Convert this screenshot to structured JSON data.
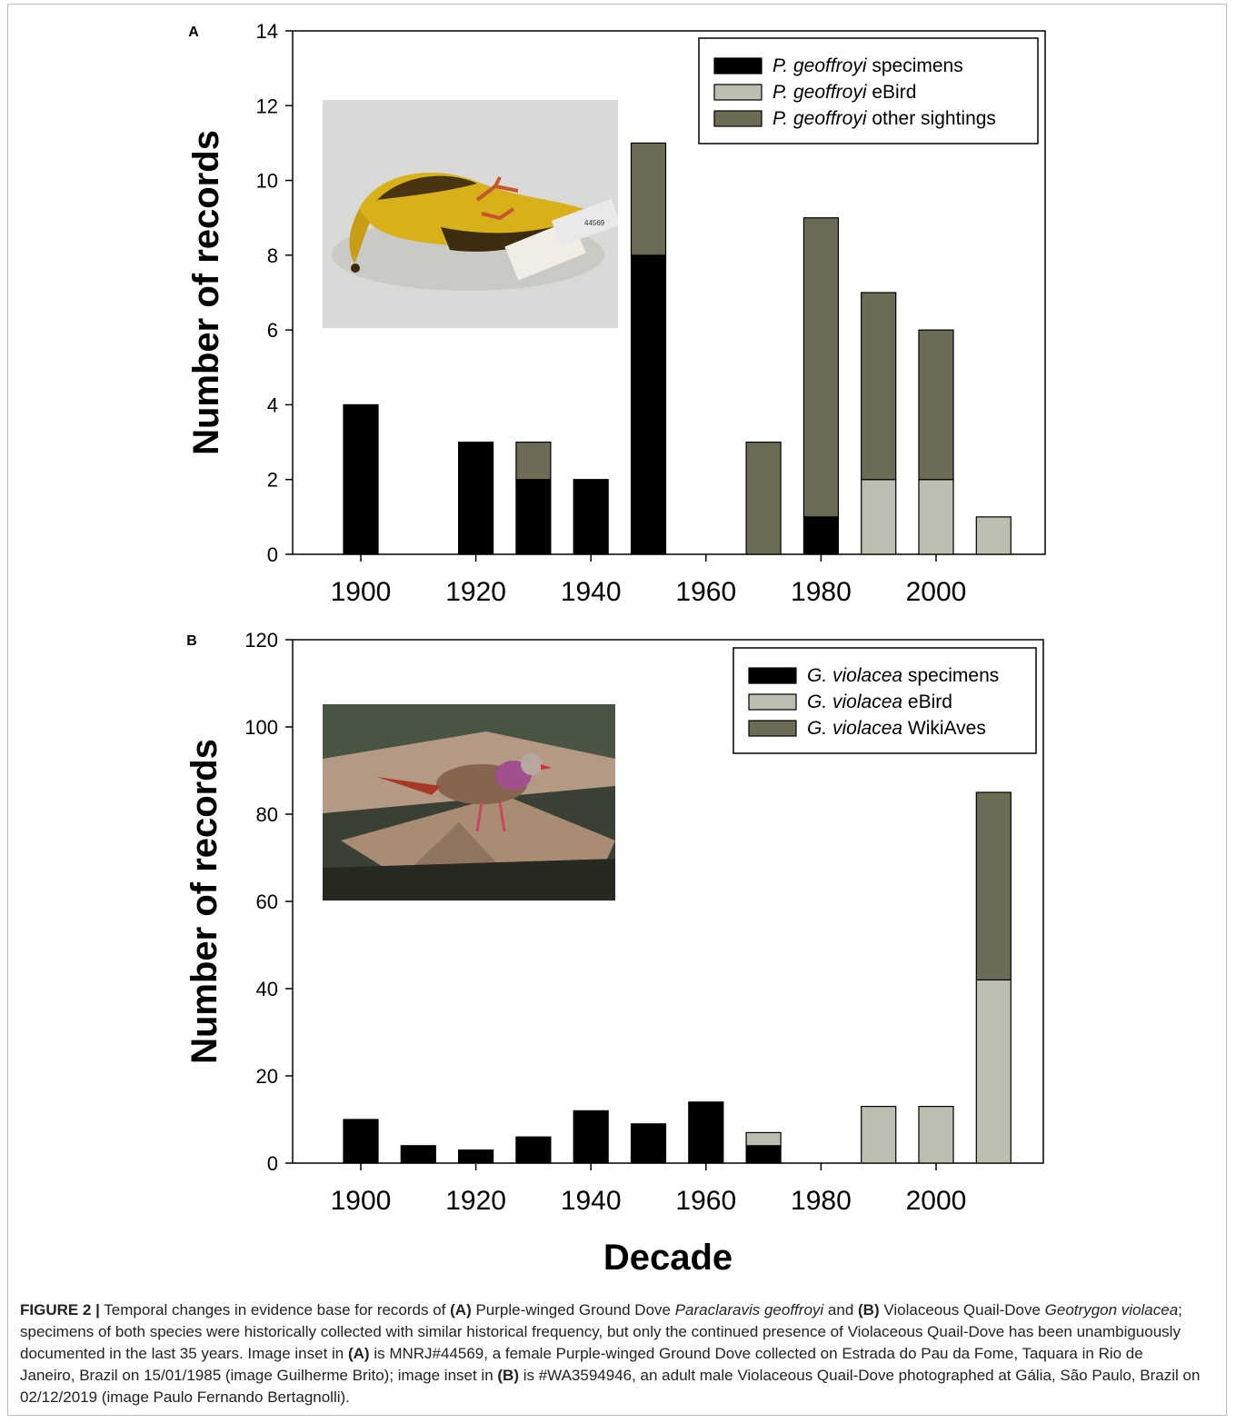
{
  "chart_data": [
    {
      "panel_label": "A",
      "type": "bar",
      "stacked": true,
      "categories": [
        "1900",
        "1910",
        "1920",
        "1930",
        "1940",
        "1950",
        "1960",
        "1970",
        "1980",
        "1990",
        "2000",
        "2010"
      ],
      "series": [
        {
          "name_italic": "P. geoffroyi",
          "name_rest": " specimens",
          "color": "#000000",
          "values": [
            4,
            0,
            3,
            2,
            2,
            8,
            0,
            0,
            1,
            0,
            0,
            0
          ]
        },
        {
          "name_italic": "P. geoffroyi",
          "name_rest": " eBird",
          "color": "#bdbdb0",
          "values": [
            0,
            0,
            0,
            0,
            0,
            0,
            0,
            0,
            0,
            2,
            2,
            1
          ]
        },
        {
          "name_italic": "P. geoffroyi",
          "name_rest": " other sightings",
          "color": "#6c6c56",
          "values": [
            0,
            0,
            0,
            1,
            0,
            3,
            0,
            3,
            8,
            5,
            4,
            0
          ]
        }
      ],
      "xlabel": "",
      "ylabel": "Number of records",
      "ylim": [
        0,
        14
      ],
      "yticks": [
        "0",
        "2",
        "4",
        "6",
        "8",
        "10",
        "12",
        "14"
      ],
      "xticks": [
        "1900",
        "1920",
        "1940",
        "1960",
        "1980",
        "2000"
      ],
      "legend": "top-right",
      "grid": false
    },
    {
      "panel_label": "B",
      "type": "bar",
      "stacked": true,
      "categories": [
        "1900",
        "1910",
        "1920",
        "1930",
        "1940",
        "1950",
        "1960",
        "1970",
        "1980",
        "1990",
        "2000",
        "2010"
      ],
      "series": [
        {
          "name_italic": "G. violacea",
          "name_rest": " specimens",
          "color": "#000000",
          "values": [
            10,
            4,
            3,
            6,
            12,
            9,
            14,
            4,
            0,
            0,
            0,
            0
          ]
        },
        {
          "name_italic": "G. violacea",
          "name_rest": " eBird",
          "color": "#bdbdb0",
          "values": [
            0,
            0,
            0,
            0,
            0,
            0,
            0,
            3,
            0,
            13,
            13,
            42
          ]
        },
        {
          "name_italic": "G. violacea",
          "name_rest": " WikiAves",
          "color": "#6c6c56",
          "values": [
            0,
            0,
            0,
            0,
            0,
            0,
            0,
            0,
            0,
            0,
            0,
            43
          ]
        }
      ],
      "xlabel": "Decade",
      "ylabel": "Number of records",
      "ylim": [
        0,
        120
      ],
      "yticks": [
        "0",
        "20",
        "40",
        "60",
        "80",
        "100",
        "120"
      ],
      "xticks": [
        "1900",
        "1920",
        "1940",
        "1960",
        "1980",
        "2000"
      ],
      "legend": "top-right",
      "grid": false
    }
  ],
  "insets": {
    "a": {
      "name": "purple-winged-ground-dove-specimen-photo",
      "tag_text": "44569"
    },
    "b": {
      "name": "violaceous-quail-dove-photo"
    }
  },
  "caption": {
    "label": "FIGURE 2 |",
    "t1": " Temporal changes in evidence base for records of ",
    "refA": "(A)",
    "t2": " Purple-winged Ground Dove ",
    "sp1": "Paraclaravis geoffroyi",
    "t3": " and ",
    "refB": "(B)",
    "t4": " Violaceous Quail-Dove ",
    "sp2": "Geotrygon violacea",
    "t5": "; specimens of both species were historically collected with similar historical frequency, but only the continued presence of Violaceous Quail-Dove has been unambiguously documented in the last 35 years. Image inset in ",
    "refA2": "(A)",
    "t6": " is MNRJ#44569, a female Purple-winged Ground Dove collected on Estrada do Pau da Fome, Taquara in Rio de Janeiro, Brazil on 15/01/1985 (image Guilherme Brito); image inset in ",
    "refB2": "(B)",
    "t7": " is #WA3594946, an adult male Violaceous Quail-Dove photographed at Gália, São Paulo, Brazil on 02/12/2019 (image Paulo Fernando Bertagnolli)."
  }
}
